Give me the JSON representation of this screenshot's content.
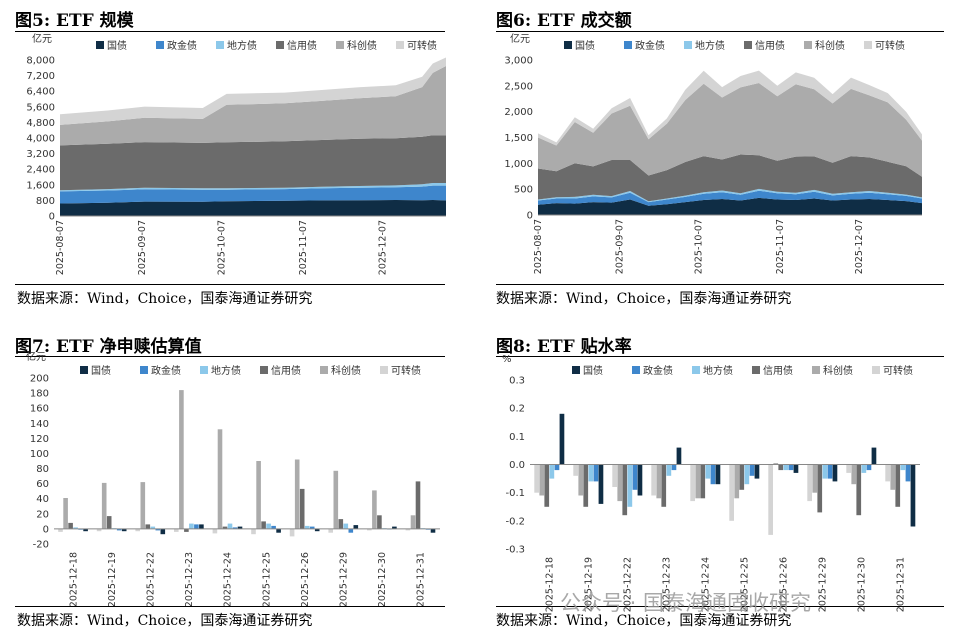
{
  "colors": {
    "gz": "#0f2d45",
    "zjz": "#3e86cc",
    "dfz": "#8cc8ea",
    "xyz": "#6b6b6b",
    "kcz": "#ababab",
    "kzz": "#d4d4d4"
  },
  "panels": [
    {
      "title": "图5:  ETF 规模",
      "source": "数据来源：Wind，Choice，国泰海通证券研究"
    },
    {
      "title": "图6:  ETF 成交额",
      "source": "数据来源：Wind，Choice，国泰海通证券研究"
    },
    {
      "title": "图7:  ETF 净申赎估算值",
      "source": "数据来源：Wind，Choice，国泰海通证券研究"
    },
    {
      "title": "图8:  ETF 贴水率",
      "source": "数据来源：Wind，Choice，国泰海通证券研究"
    }
  ],
  "watermark": "公众号 · 国泰海通固收研究",
  "chart_data": [
    {
      "type": "area",
      "stacked": true,
      "ylabel": "亿元",
      "ylim": [
        0,
        8000
      ],
      "yticks": [
        0,
        800,
        1600,
        2400,
        3200,
        4000,
        4800,
        5600,
        6400,
        7200,
        8000
      ],
      "ytick_labels": [
        "0",
        "800",
        "1,600",
        "2,400",
        "3,200",
        "4,000",
        "4,800",
        "5,600",
        "6,400",
        "7,200",
        "8,000"
      ],
      "xlim": [
        "2025-08-07",
        "2025-12-31"
      ],
      "xtick_labels": [
        "2025-08-07",
        "2025-09-07",
        "2025-10-07",
        "2025-11-07",
        "2025-12-07"
      ],
      "legend_position": "top",
      "x": [
        "2025-08-07",
        "2025-08-25",
        "2025-09-08",
        "2025-09-30",
        "2025-10-09",
        "2025-10-31",
        "2025-11-14",
        "2025-11-28",
        "2025-12-12",
        "2025-12-22",
        "2025-12-26",
        "2025-12-31"
      ],
      "series": [
        {
          "name": "国债",
          "key": "gz",
          "values": [
            640,
            680,
            740,
            730,
            760,
            780,
            800,
            810,
            820,
            810,
            820,
            800
          ]
        },
        {
          "name": "政金债",
          "key": "zjz",
          "values": [
            620,
            630,
            630,
            620,
            590,
            600,
            620,
            640,
            650,
            700,
            740,
            760
          ]
        },
        {
          "name": "地方债",
          "key": "dfz",
          "values": [
            60,
            70,
            80,
            70,
            70,
            70,
            80,
            90,
            100,
            120,
            130,
            130
          ]
        },
        {
          "name": "信用债",
          "key": "xyz",
          "values": [
            2300,
            2320,
            2340,
            2330,
            2360,
            2380,
            2400,
            2420,
            2420,
            2430,
            2450,
            2450
          ]
        },
        {
          "name": "科创债",
          "key": "kcz",
          "values": [
            1050,
            1150,
            1250,
            1230,
            1920,
            1950,
            2000,
            2080,
            2150,
            2550,
            3200,
            3550
          ]
        },
        {
          "name": "可转债",
          "key": "kzz",
          "values": [
            550,
            560,
            570,
            560,
            560,
            550,
            560,
            560,
            560,
            530,
            480,
            440
          ]
        }
      ]
    },
    {
      "type": "area",
      "stacked": true,
      "ylabel": "亿元",
      "ylim": [
        0,
        3000
      ],
      "yticks": [
        0,
        500,
        1000,
        1500,
        2000,
        2500,
        3000
      ],
      "ytick_labels": [
        "0",
        "500",
        "1,000",
        "1,500",
        "2,000",
        "2,500",
        "3,000"
      ],
      "xlim": [
        "2025-08-07",
        "2025-12-31"
      ],
      "xtick_labels": [
        "2025-08-07",
        "2025-09-07",
        "2025-10-07",
        "2025-11-07",
        "2025-12-07"
      ],
      "legend_position": "top",
      "x": [
        "2025-08-07",
        "2025-08-14",
        "2025-08-21",
        "2025-08-28",
        "2025-09-04",
        "2025-09-11",
        "2025-09-18",
        "2025-09-25",
        "2025-10-02",
        "2025-10-09",
        "2025-10-16",
        "2025-10-23",
        "2025-10-30",
        "2025-11-06",
        "2025-11-13",
        "2025-11-20",
        "2025-11-27",
        "2025-12-04",
        "2025-12-11",
        "2025-12-18",
        "2025-12-25",
        "2025-12-31"
      ],
      "series": [
        {
          "name": "国债",
          "key": "gz",
          "values": [
            200,
            230,
            220,
            250,
            240,
            300,
            180,
            210,
            250,
            290,
            310,
            280,
            330,
            300,
            290,
            320,
            280,
            300,
            310,
            290,
            270,
            230
          ]
        },
        {
          "name": "政金债",
          "key": "zjz",
          "values": [
            80,
            90,
            100,
            110,
            100,
            130,
            70,
            90,
            100,
            120,
            130,
            110,
            140,
            120,
            110,
            130,
            100,
            110,
            120,
            110,
            100,
            90
          ]
        },
        {
          "name": "地方债",
          "key": "dfz",
          "values": [
            20,
            25,
            30,
            30,
            25,
            35,
            15,
            20,
            25,
            30,
            35,
            30,
            35,
            30,
            30,
            35,
            30,
            30,
            35,
            30,
            25,
            20
          ]
        },
        {
          "name": "信用债",
          "key": "xyz",
          "values": [
            600,
            500,
            650,
            550,
            700,
            600,
            500,
            550,
            650,
            700,
            600,
            750,
            650,
            600,
            700,
            650,
            600,
            700,
            650,
            600,
            550,
            400
          ]
        },
        {
          "name": "科创债",
          "key": "kcz",
          "values": [
            600,
            500,
            800,
            650,
            900,
            1050,
            700,
            900,
            1200,
            1400,
            1200,
            1300,
            1400,
            1250,
            1400,
            1300,
            1150,
            1300,
            1200,
            1150,
            900,
            700
          ]
        },
        {
          "name": "可转债",
          "key": "kzz",
          "values": [
            80,
            60,
            90,
            80,
            100,
            150,
            80,
            100,
            200,
            250,
            200,
            220,
            240,
            200,
            230,
            220,
            180,
            220,
            200,
            180,
            150,
            120
          ]
        }
      ]
    },
    {
      "type": "bar",
      "ylabel": "亿元",
      "ylim": [
        -20,
        200
      ],
      "yticks": [
        -20,
        0,
        20,
        40,
        60,
        80,
        100,
        120,
        140,
        160,
        180,
        200
      ],
      "ytick_labels": [
        "-20",
        "0",
        "20",
        "40",
        "60",
        "80",
        "100",
        "120",
        "140",
        "160",
        "180",
        "200"
      ],
      "legend_position": "top",
      "categories": [
        "2025-12-18",
        "2025-12-19",
        "2025-12-22",
        "2025-12-23",
        "2025-12-24",
        "2025-12-25",
        "2025-12-26",
        "2025-12-29",
        "2025-12-30",
        "2025-12-31"
      ],
      "series": [
        {
          "name": "可转债",
          "key": "kzz",
          "values": [
            -4,
            -3,
            -3,
            -4,
            -6,
            -7,
            -10,
            -5,
            -2,
            -2
          ]
        },
        {
          "name": "科创债",
          "key": "kcz",
          "values": [
            41,
            61,
            62,
            184,
            132,
            90,
            92,
            77,
            51,
            18
          ]
        },
        {
          "name": "信用债",
          "key": "xyz",
          "values": [
            8,
            17,
            6,
            -4,
            3,
            10,
            53,
            13,
            18,
            63
          ]
        },
        {
          "name": "地方债",
          "key": "dfz",
          "values": [
            2,
            1,
            3,
            7,
            7,
            7,
            4,
            7,
            1,
            1
          ]
        },
        {
          "name": "政金债",
          "key": "zjz",
          "values": [
            -1,
            -2,
            -2,
            6,
            2,
            4,
            3,
            -5,
            0,
            -1
          ]
        },
        {
          "name": "国债",
          "key": "gz",
          "values": [
            -3,
            -3,
            -7,
            6,
            3,
            -5,
            -3,
            5,
            3,
            -5
          ]
        }
      ]
    },
    {
      "type": "bar",
      "ylabel": "%",
      "ylim": [
        -0.3,
        0.3
      ],
      "yticks": [
        -0.3,
        -0.2,
        -0.1,
        0.0,
        0.1,
        0.2,
        0.3
      ],
      "ytick_labels": [
        "-0.3",
        "-0.2",
        "-0.1",
        "0.0",
        "0.1",
        "0.2",
        "0.3"
      ],
      "legend_position": "top",
      "categories": [
        "2025-12-18",
        "2025-12-19",
        "2025-12-22",
        "2025-12-23",
        "2025-12-24",
        "2025-12-25",
        "2025-12-26",
        "2025-12-29",
        "2025-12-30",
        "2025-12-31"
      ],
      "series": [
        {
          "name": "可转债",
          "key": "kzz",
          "values": [
            -0.1,
            -0.04,
            -0.08,
            -0.11,
            -0.13,
            -0.2,
            -0.25,
            -0.13,
            -0.03,
            -0.06
          ]
        },
        {
          "name": "科创债",
          "key": "kcz",
          "values": [
            -0.11,
            -0.11,
            -0.13,
            -0.12,
            -0.12,
            -0.12,
            0.005,
            -0.1,
            -0.07,
            -0.09
          ]
        },
        {
          "name": "信用债",
          "key": "xyz",
          "values": [
            -0.15,
            -0.15,
            -0.18,
            -0.15,
            -0.12,
            -0.09,
            -0.02,
            -0.17,
            -0.18,
            -0.15
          ]
        },
        {
          "name": "地方债",
          "key": "dfz",
          "values": [
            -0.05,
            -0.06,
            -0.15,
            -0.04,
            -0.05,
            -0.07,
            -0.02,
            -0.05,
            -0.03,
            -0.02
          ]
        },
        {
          "name": "政金债",
          "key": "zjz",
          "values": [
            -0.02,
            -0.06,
            -0.09,
            -0.02,
            -0.07,
            -0.04,
            -0.02,
            -0.05,
            -0.02,
            -0.06
          ]
        },
        {
          "name": "国债",
          "key": "gz",
          "values": [
            0.18,
            -0.14,
            -0.11,
            0.06,
            -0.07,
            -0.05,
            -0.03,
            -0.06,
            0.06,
            -0.22
          ]
        }
      ]
    }
  ]
}
